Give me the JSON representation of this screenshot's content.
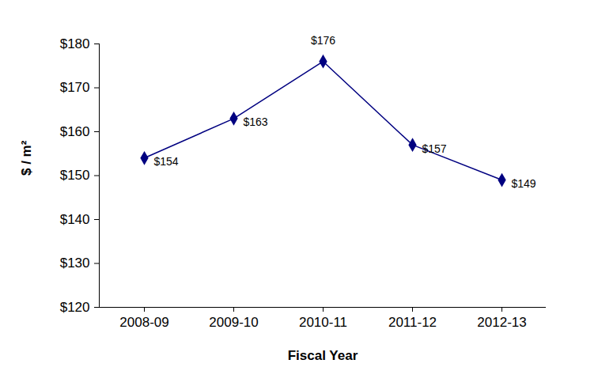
{
  "chart_data": {
    "type": "line",
    "categories": [
      "2008-09",
      "2009-10",
      "2010-11",
      "2011-12",
      "2012-13"
    ],
    "values": [
      154,
      163,
      176,
      157,
      149
    ],
    "value_labels": [
      "$154",
      "$163",
      "$176",
      "$157",
      "$149"
    ],
    "data_labels": true,
    "color": "#000080",
    "marker": "diamond",
    "x_label": "Fiscal Year",
    "y_label": "$ / m²",
    "ylim": [
      120,
      180
    ],
    "yticks": [
      {
        "value": 120,
        "label": "$120"
      },
      {
        "value": 130,
        "label": "$130"
      },
      {
        "value": 140,
        "label": "$140"
      },
      {
        "value": 150,
        "label": "$150"
      },
      {
        "value": 160,
        "label": "$160"
      },
      {
        "value": 170,
        "label": "$170"
      },
      {
        "value": 180,
        "label": "$180"
      }
    ],
    "grid": false
  }
}
